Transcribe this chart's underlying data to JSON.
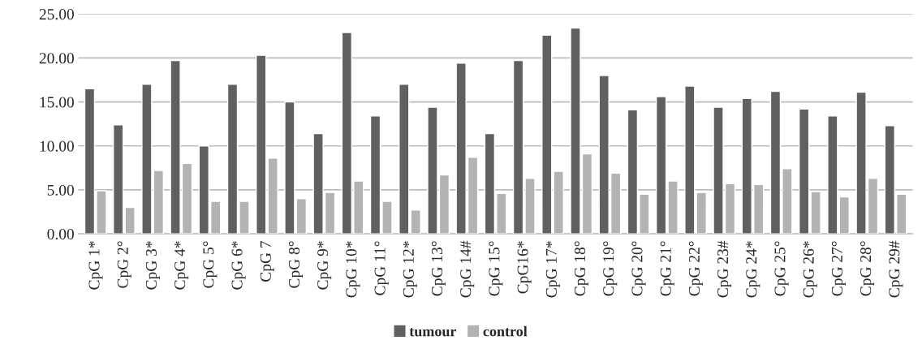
{
  "chart_data": {
    "type": "bar",
    "categories": [
      "CpG 1*",
      "CpG 2°",
      "CpG 3*",
      "CpG 4*",
      "CpG 5°",
      "CpG 6*",
      "CpG 7",
      "CpG 8°",
      "CpG 9*",
      "CpG 10*",
      "CpG 11°",
      "CpG 12*",
      "CpG 13°",
      "CpG 14#",
      "CpG 15°",
      "CpG16*",
      "CpG 17*",
      "CpG 18°",
      "CpG 19°",
      "CpG 20°",
      "CpG 21°",
      "CpG 22°",
      "CpG 23#",
      "CpG 24*",
      "CpG 25°",
      "CpG 26*",
      "CpG 27°",
      "CpG 28°",
      "CpG 29#"
    ],
    "series": [
      {
        "name": "tumour",
        "color": "#606060",
        "values": [
          16.5,
          12.4,
          17.0,
          19.7,
          10.0,
          17.0,
          20.3,
          15.0,
          11.4,
          22.9,
          13.4,
          17.0,
          14.4,
          19.4,
          11.4,
          19.7,
          22.6,
          23.4,
          18.0,
          14.1,
          15.6,
          16.8,
          14.4,
          15.4,
          16.2,
          14.2,
          13.4,
          16.1,
          12.3
        ]
      },
      {
        "name": "control",
        "color": "#b3b3b3",
        "values": [
          4.9,
          3.0,
          7.2,
          8.0,
          3.7,
          3.7,
          8.6,
          4.0,
          4.7,
          6.0,
          3.7,
          2.7,
          6.7,
          8.7,
          4.6,
          6.3,
          7.1,
          9.1,
          6.9,
          4.5,
          6.0,
          4.7,
          5.7,
          5.6,
          7.4,
          4.8,
          4.2,
          6.3,
          4.5
        ]
      }
    ],
    "ylim": [
      0,
      25
    ],
    "yticks": [
      {
        "value": 0,
        "label": "0.00"
      },
      {
        "value": 5,
        "label": "5.00"
      },
      {
        "value": 10,
        "label": "10.00"
      },
      {
        "value": 15,
        "label": "15.00"
      },
      {
        "value": 20,
        "label": "20.00"
      },
      {
        "value": 25,
        "label": "25.00"
      }
    ],
    "grid": "y",
    "legend": "bottom"
  }
}
